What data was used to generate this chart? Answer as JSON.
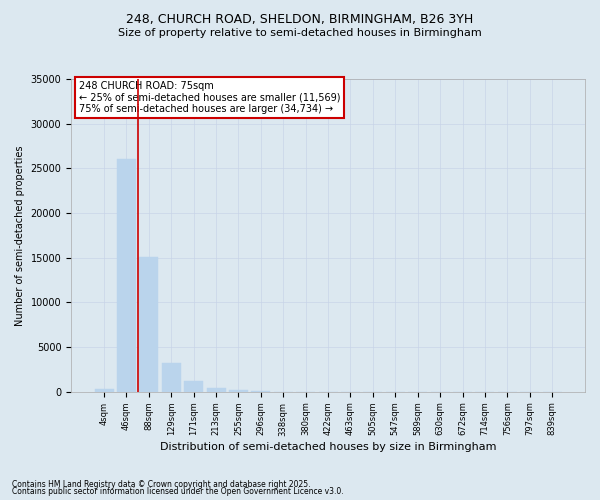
{
  "title1": "248, CHURCH ROAD, SHELDON, BIRMINGHAM, B26 3YH",
  "title2": "Size of property relative to semi-detached houses in Birmingham",
  "xlabel": "Distribution of semi-detached houses by size in Birmingham",
  "ylabel": "Number of semi-detached properties",
  "categories": [
    "4sqm",
    "46sqm",
    "88sqm",
    "129sqm",
    "171sqm",
    "213sqm",
    "255sqm",
    "296sqm",
    "338sqm",
    "380sqm",
    "422sqm",
    "463sqm",
    "505sqm",
    "547sqm",
    "589sqm",
    "630sqm",
    "672sqm",
    "714sqm",
    "756sqm",
    "797sqm",
    "839sqm"
  ],
  "values": [
    300,
    26100,
    15100,
    3200,
    1200,
    450,
    200,
    50,
    0,
    0,
    0,
    0,
    0,
    0,
    0,
    0,
    0,
    0,
    0,
    0,
    0
  ],
  "bar_color": "#bad4ec",
  "bar_edgecolor": "#bad4ec",
  "redline_x": 1.5,
  "annotation_title": "248 CHURCH ROAD: 75sqm",
  "annotation_line1": "← 25% of semi-detached houses are smaller (11,569)",
  "annotation_line2": "75% of semi-detached houses are larger (34,734) →",
  "annotation_box_facecolor": "#ffffff",
  "annotation_box_edgecolor": "#cc0000",
  "redline_color": "#cc0000",
  "ylim": [
    0,
    35000
  ],
  "yticks": [
    0,
    5000,
    10000,
    15000,
    20000,
    25000,
    30000,
    35000
  ],
  "grid_color": "#c8d4e8",
  "background_color": "#dce8f0",
  "footer1": "Contains HM Land Registry data © Crown copyright and database right 2025.",
  "footer2": "Contains public sector information licensed under the Open Government Licence v3.0."
}
